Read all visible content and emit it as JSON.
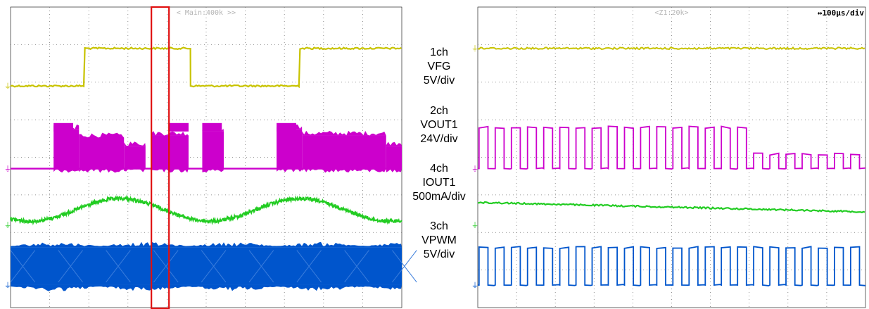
{
  "screens": [
    {
      "name": "main",
      "header": "< Main:400k >>",
      "time_div": ""
    },
    {
      "name": "zoom",
      "header": "<Z1:20k>",
      "time_div": "↔100μs/div"
    }
  ],
  "channels": [
    {
      "lines": [
        "1ch",
        "VFG",
        "5V/div"
      ],
      "color": "#c8c300",
      "name": "VFG"
    },
    {
      "lines": [
        "2ch",
        "VOUT1",
        "24V/div"
      ],
      "color": "#cc00cc",
      "name": "VOUT1"
    },
    {
      "lines": [
        "4ch",
        "IOUT1",
        "500mA/div"
      ],
      "color": "#22cc22",
      "name": "IOUT1"
    },
    {
      "lines": [
        "3ch",
        "VPWM",
        "5V/div"
      ],
      "color": "#0055cc",
      "name": "VPWM"
    }
  ],
  "chart_data": [
    {
      "type": "line",
      "title": "",
      "grid": true,
      "divisions": {
        "x": 10,
        "y": 8
      },
      "series": [
        {
          "name": "VFG",
          "shape": "square",
          "high_div": 6.9,
          "low_div": 5.9,
          "edges_div": [
            0,
            1.9,
            4.6,
            7.4,
            10
          ],
          "start": "low"
        },
        {
          "name": "VOUT1",
          "shape": "pwm-bursts",
          "top_div": 4.8,
          "bottom_div": 3.7
        },
        {
          "name": "IOUT1",
          "shape": "sine-ripple",
          "center_div": 2.6,
          "amplitude_div": 0.3,
          "period_div": 4.6
        },
        {
          "name": "VPWM",
          "shape": "dense-pwm",
          "top_div": 1.6,
          "bottom_div": 0.6
        }
      ],
      "highlight": {
        "x_start_div": 3.6,
        "x_end_div": 4.05,
        "color": "#e01010"
      }
    },
    {
      "type": "line",
      "title": "",
      "grid": true,
      "divisions": {
        "x": 10,
        "y": 8
      },
      "series": [
        {
          "name": "VFG",
          "shape": "flat",
          "level_div": 6.9
        },
        {
          "name": "VOUT1",
          "shape": "square-pulses",
          "top_div": 4.8,
          "bottom_div": 3.7,
          "pulses": 24
        },
        {
          "name": "IOUT1",
          "shape": "flat-decline",
          "start_div": 2.8,
          "end_div": 2.55
        },
        {
          "name": "VPWM",
          "shape": "square-pulses",
          "top_div": 1.6,
          "bottom_div": 0.6,
          "pulses": 24
        }
      ]
    }
  ]
}
